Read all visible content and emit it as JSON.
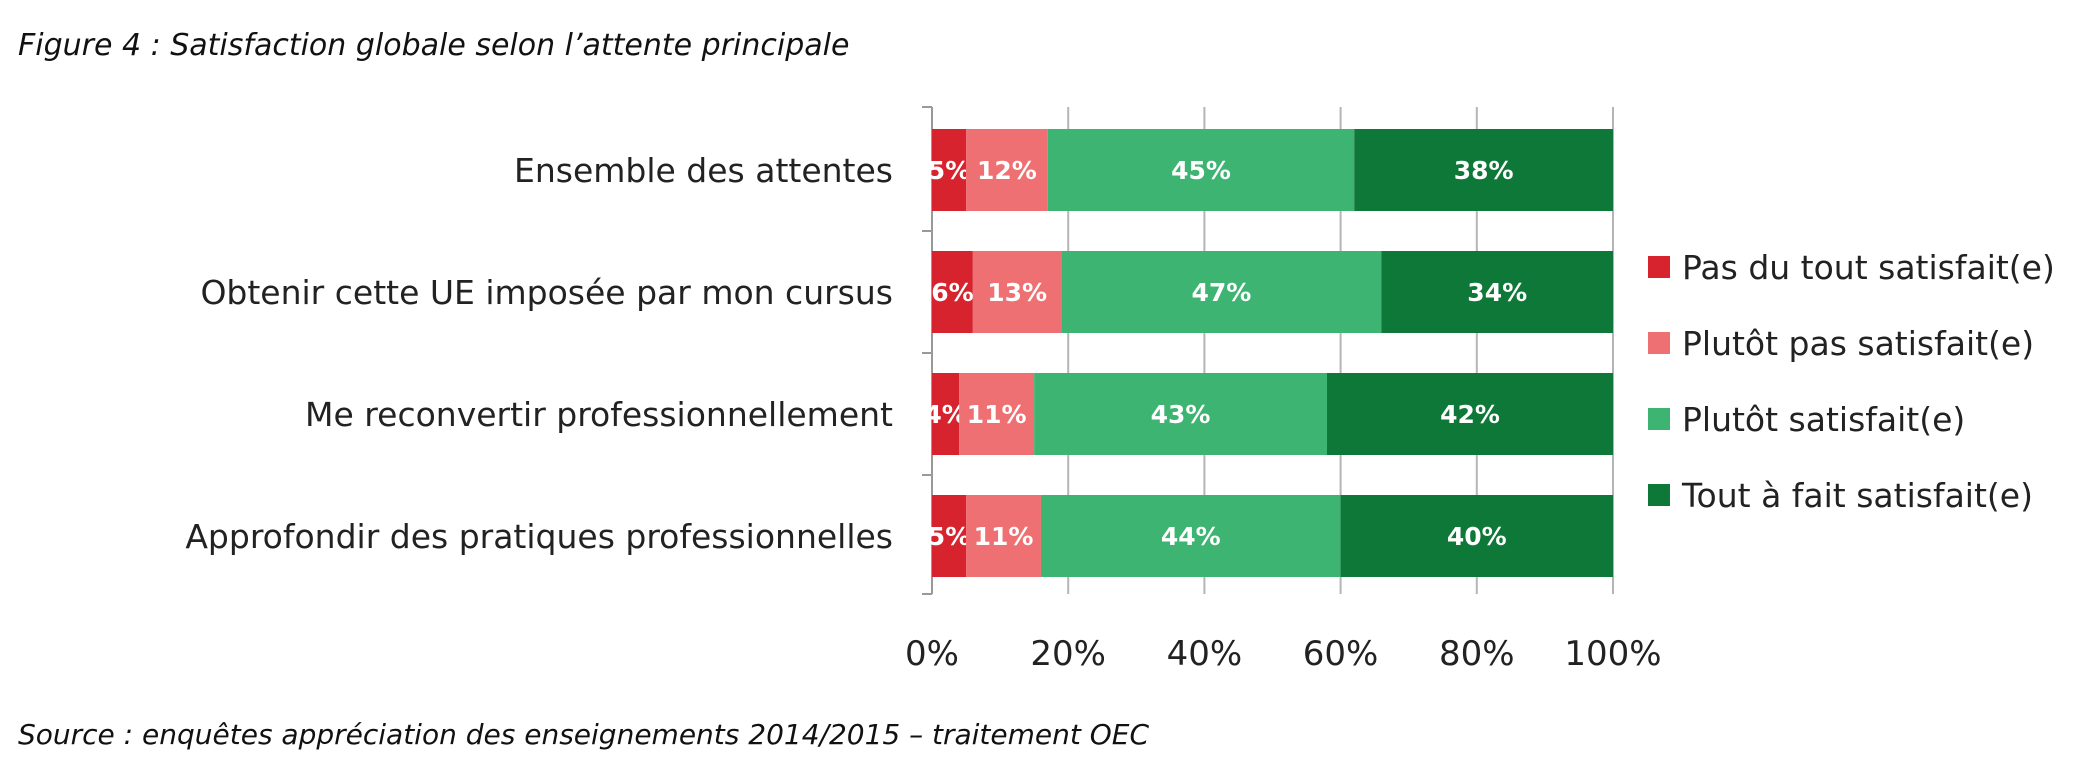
{
  "figure": {
    "title": "Figure 4 : Satisfaction globale selon l’attente principale",
    "source": "Source : enquêtes appréciation des enseignements 2014/2015 – traitement OEC"
  },
  "chart_data": {
    "type": "bar",
    "orientation": "horizontal",
    "stacked": true,
    "categories": [
      "Ensemble des attentes",
      "Obtenir cette UE imposée par mon cursus",
      "Me reconvertir professionnellement",
      "Approfondir des pratiques professionnelles"
    ],
    "series": [
      {
        "name": "Pas du tout satisfait(e)",
        "color": "#d7232e",
        "values": [
          5,
          6,
          4,
          5
        ],
        "labels": [
          "5%",
          "6%",
          "4%",
          "5%"
        ]
      },
      {
        "name": "Plutôt pas satisfait(e)",
        "color": "#ee7072",
        "values": [
          12,
          13,
          11,
          11
        ],
        "labels": [
          "12%",
          "13%",
          "11%",
          "11%"
        ]
      },
      {
        "name": "Plutôt satisfait(e)",
        "color": "#3db471",
        "values": [
          45,
          47,
          43,
          44
        ],
        "labels": [
          "45%",
          "47%",
          "43%",
          "44%"
        ]
      },
      {
        "name": "Tout à fait satisfait(e)",
        "color": "#0e7838",
        "values": [
          38,
          34,
          42,
          40
        ],
        "labels": [
          "38%",
          "34%",
          "42%",
          "40%"
        ]
      }
    ],
    "xlim": [
      0,
      100
    ],
    "xticks": [
      "0%",
      "20%",
      "40%",
      "60%",
      "80%",
      "100%"
    ],
    "grid": true,
    "legend_position": "right"
  }
}
